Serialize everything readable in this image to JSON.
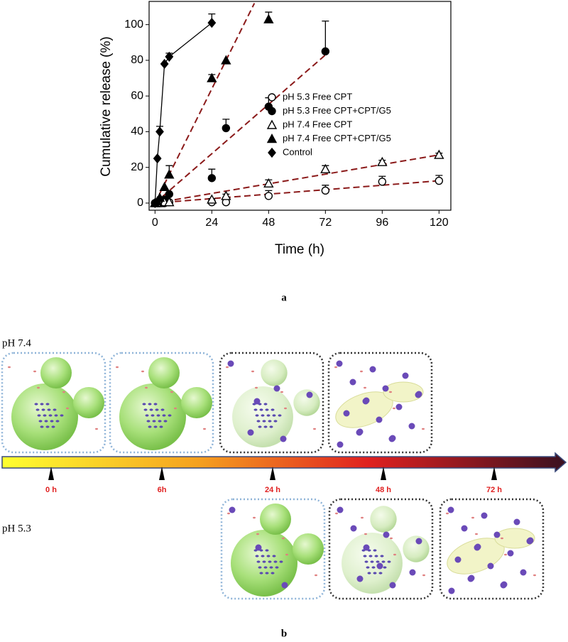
{
  "chart_data": {
    "type": "scatter",
    "x_label": "Time (h)",
    "y_label": "Cumulative release (%)",
    "xlim": [
      -2.5,
      125
    ],
    "ylim": [
      -4,
      113
    ],
    "xticks": [
      0,
      24,
      48,
      72,
      96,
      120
    ],
    "yticks": [
      0,
      20,
      40,
      60,
      80,
      100
    ],
    "legend": "center-right",
    "series": [
      {
        "name": "pH 5.3 Free CPT",
        "marker": "circle-open",
        "color": "#000000",
        "x": [
          0,
          1,
          2,
          4,
          6,
          24,
          30,
          48,
          72,
          96,
          120
        ],
        "values": [
          0,
          0,
          0,
          0,
          0.5,
          0.5,
          0.5,
          4,
          7,
          12,
          12.5
        ],
        "errors": [
          null,
          null,
          null,
          null,
          null,
          2,
          null,
          3,
          3,
          3,
          3
        ]
      },
      {
        "name": "pH 5.3 Free CPT+CPT/G5",
        "marker": "circle",
        "color": "#000000",
        "x": [
          0,
          1,
          2,
          4,
          6,
          24,
          30,
          48,
          72
        ],
        "values": [
          0,
          0.5,
          1,
          2,
          5,
          14,
          42,
          54,
          85
        ],
        "errors": [
          null,
          null,
          null,
          null,
          null,
          5,
          5,
          5,
          17
        ]
      },
      {
        "name": "pH 7.4 Free CPT",
        "marker": "triangle-open",
        "color": "#000000",
        "x": [
          0,
          1,
          2,
          4,
          6,
          24,
          30,
          48,
          72,
          96,
          120
        ],
        "values": [
          0,
          0,
          0,
          0.5,
          0.5,
          2,
          4,
          11,
          19,
          23,
          27
        ],
        "errors": [
          null,
          null,
          null,
          null,
          null,
          null,
          1,
          2,
          2,
          1,
          1
        ]
      },
      {
        "name": "pH 7.4 Free CPT+CPT/G5",
        "marker": "triangle",
        "color": "#000000",
        "x": [
          0,
          1,
          2,
          4,
          6,
          24,
          30,
          48
        ],
        "values": [
          0,
          1,
          3,
          9,
          16,
          70,
          80,
          103
        ],
        "errors": [
          null,
          null,
          null,
          null,
          5,
          2,
          null,
          4
        ]
      },
      {
        "name": "Control",
        "marker": "diamond",
        "color": "#000000",
        "connect": true,
        "x": [
          0,
          1,
          2,
          4,
          6,
          24
        ],
        "values": [
          0,
          25,
          40,
          78,
          82,
          101
        ],
        "errors": [
          null,
          null,
          3,
          null,
          2,
          5
        ]
      }
    ],
    "trend_lines": [
      {
        "color": "#8b1a1a",
        "x": [
          0,
          120
        ],
        "values": [
          0,
          12.5
        ]
      },
      {
        "color": "#8b1a1a",
        "x": [
          0,
          120
        ],
        "values": [
          0,
          27
        ]
      },
      {
        "color": "#8b1a1a",
        "x": [
          0,
          72
        ],
        "values": [
          0,
          83
        ]
      },
      {
        "color": "#8b1a1a",
        "x": [
          0,
          42
        ],
        "values": [
          0,
          112
        ]
      }
    ]
  },
  "diagram": {
    "panel_a": "a",
    "panel_b": "b",
    "row_top": "pH 7.4",
    "row_bottom": "pH 5.3",
    "timeline": [
      "0 h",
      "6h",
      "24 h",
      "48 h",
      "72 h"
    ]
  }
}
